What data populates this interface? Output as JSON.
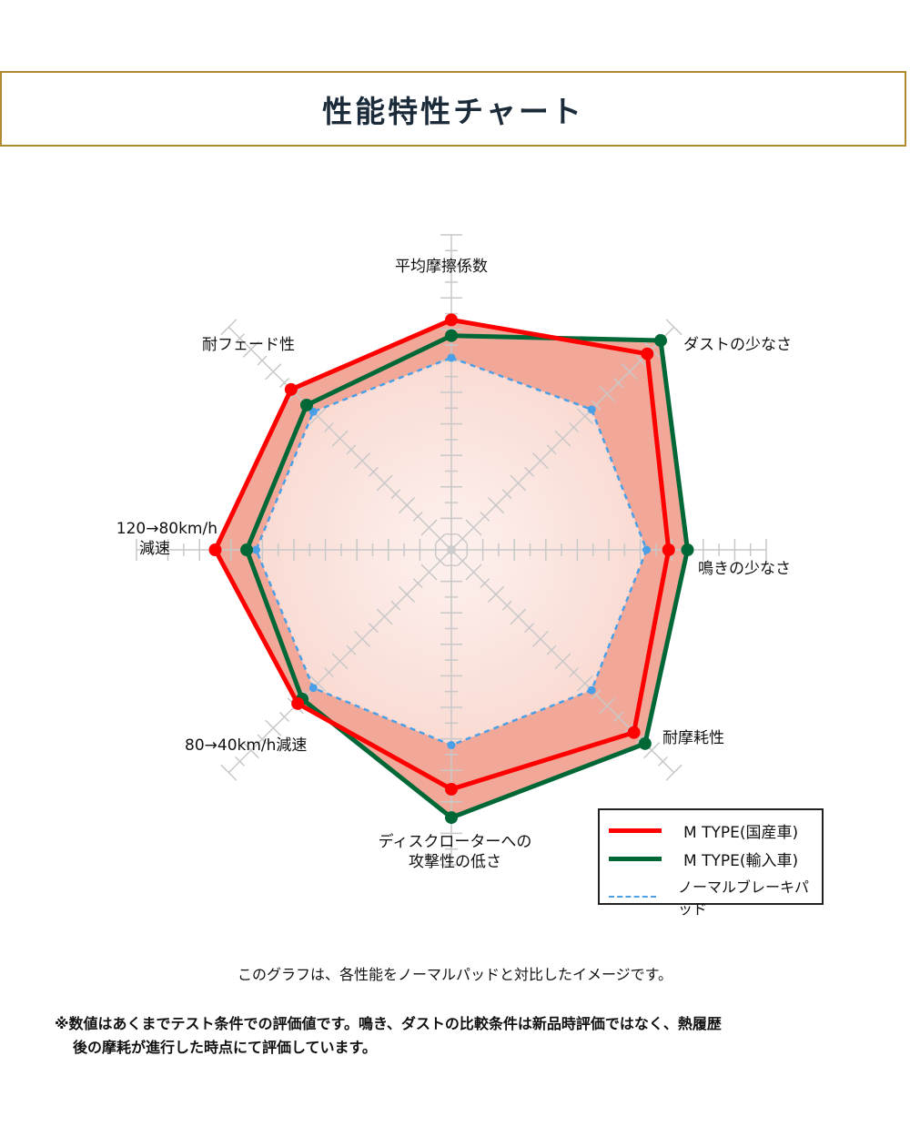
{
  "header": {
    "title": "性能特性チャート"
  },
  "chart_data": {
    "type": "radar",
    "title": "性能特性チャート",
    "scale": {
      "min": 0,
      "max": 20,
      "ticks": 20
    },
    "axes": [
      "平均摩擦係数",
      "ダストの少なさ",
      "鳴きの少なさ",
      "耐摩耗性",
      "ディスクローターへの攻撃性の低さ",
      "80→40km/h減速",
      "120→80km/h減速",
      "耐フェード性"
    ],
    "series": [
      {
        "name": "M TYPE(国産車)",
        "color": "#ff0000",
        "style": "solid",
        "values": [
          14.6,
          17.6,
          13.8,
          16.4,
          15.2,
          13.8,
          15.0,
          14.4
        ]
      },
      {
        "name": "M TYPE(輸入車)",
        "color": "#006837",
        "style": "solid",
        "values": [
          13.6,
          18.8,
          15.0,
          17.4,
          17.0,
          13.4,
          13.0,
          13.0
        ]
      },
      {
        "name": "ノーマルブレーキパッド",
        "color": "#4a9fe6",
        "style": "dashed",
        "values": [
          12.2,
          12.6,
          12.4,
          12.6,
          12.4,
          12.4,
          12.4,
          12.4
        ]
      }
    ],
    "legend_position": "bottom-right"
  },
  "labels": {
    "top": "平均摩擦係数",
    "top_right": "ダストの少なさ",
    "right": "鳴きの少なさ",
    "bottom_right": "耐摩耗性",
    "bottom_line1": "ディスクローターへの",
    "bottom_line2": "攻撃性の低さ",
    "bottom_left": "80→40km/h減速",
    "left_line1": "120→80km/h",
    "left_line2": "減速",
    "top_left": "耐フェード性"
  },
  "legend": {
    "items": [
      {
        "label": "M TYPE(国産車)",
        "color": "#ff0000"
      },
      {
        "label": "M TYPE(輸入車)",
        "color": "#006837"
      },
      {
        "label": "ノーマルブレーキパッド",
        "color": "#4a9fe6"
      }
    ]
  },
  "footer": {
    "note": "このグラフは、各性能をノーマルパッドと対比したイメージです。",
    "disclaimer_line1": "※数値はあくまでテスト条件での評価値です。鳴き、ダストの比較条件は新品時評価ではなく、熱履歴",
    "disclaimer_line2": "後の摩耗が進行した時点にて評価しています。"
  }
}
